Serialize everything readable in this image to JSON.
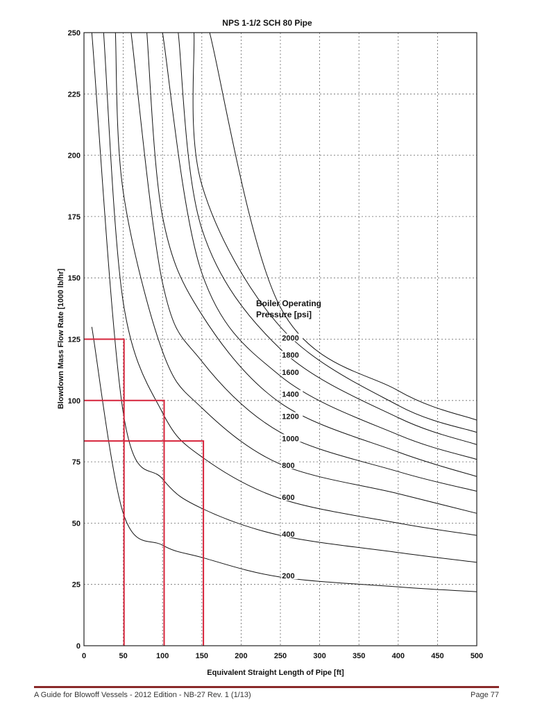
{
  "chart_data": {
    "type": "line",
    "title": "NPS 1-1/2 SCH 80 Pipe",
    "xlabel": "Equivalent Straight Length of Pipe [ft]",
    "ylabel": "Blowdown Mass Flow Rate [1000 lb/hr]",
    "xlim": [
      0,
      500
    ],
    "ylim": [
      0,
      250
    ],
    "xticks": [
      "0",
      "50",
      "100",
      "150",
      "200",
      "250",
      "300",
      "350",
      "400",
      "450",
      "500"
    ],
    "yticks": [
      "0",
      "25",
      "50",
      "75",
      "100",
      "125",
      "150",
      "175",
      "200",
      "225",
      "250"
    ],
    "grid": true,
    "legend_title": [
      "Boiler Operating",
      "Pressure [psi]"
    ],
    "series": [
      {
        "name": "200",
        "x": [
          10,
          50,
          100,
          150,
          250,
          400,
          500
        ],
        "values": [
          130,
          54,
          41,
          36,
          28,
          24,
          22
        ]
      },
      {
        "name": "400",
        "x": [
          10,
          50,
          100,
          150,
          250,
          400,
          500
        ],
        "values": [
          250,
          95,
          68,
          56,
          45,
          38,
          34
        ]
      },
      {
        "name": "600",
        "x": [
          25,
          50,
          100,
          150,
          250,
          400,
          500
        ],
        "values": [
          250,
          140,
          95,
          77,
          60,
          50,
          45
        ]
      },
      {
        "name": "800",
        "x": [
          40,
          50,
          100,
          150,
          250,
          400,
          500
        ],
        "values": [
          250,
          185,
          120,
          97,
          74,
          62,
          54
        ]
      },
      {
        "name": "1000",
        "x": [
          60,
          100,
          150,
          250,
          400,
          500
        ],
        "values": [
          250,
          148,
          116,
          87,
          71,
          63
        ]
      },
      {
        "name": "1200",
        "x": [
          80,
          100,
          150,
          250,
          400,
          500
        ],
        "values": [
          250,
          175,
          135,
          99,
          79,
          69
        ]
      },
      {
        "name": "1400",
        "x": [
          100,
          150,
          250,
          400,
          500
        ],
        "values": [
          250,
          152,
          110,
          86,
          76
        ]
      },
      {
        "name": "1600",
        "x": [
          120,
          150,
          250,
          400,
          500
        ],
        "values": [
          250,
          170,
          121,
          93,
          82
        ]
      },
      {
        "name": "1800",
        "x": [
          140,
          150,
          250,
          400,
          500
        ],
        "values": [
          250,
          188,
          130,
          98,
          87
        ]
      },
      {
        "name": "2000",
        "x": [
          160,
          250,
          400,
          500
        ],
        "values": [
          250,
          138,
          104,
          92
        ]
      }
    ],
    "curve_labels": [
      {
        "text": "200",
        "x": 252,
        "y": 28
      },
      {
        "text": "400",
        "x": 252,
        "y": 45
      },
      {
        "text": "600",
        "x": 252,
        "y": 60
      },
      {
        "text": "800",
        "x": 252,
        "y": 73
      },
      {
        "text": "1000",
        "x": 252,
        "y": 84
      },
      {
        "text": "1200",
        "x": 252,
        "y": 93
      },
      {
        "text": "1400",
        "x": 252,
        "y": 102
      },
      {
        "text": "1600",
        "x": 252,
        "y": 111
      },
      {
        "text": "1800",
        "x": 252,
        "y": 118
      },
      {
        "text": "2000",
        "x": 252,
        "y": 125
      }
    ],
    "annotations": [
      {
        "color": "#d6233a",
        "points": [
          [
            0,
            125
          ],
          [
            51,
            125
          ],
          [
            51,
            0
          ]
        ]
      },
      {
        "color": "#d6233a",
        "points": [
          [
            0,
            100
          ],
          [
            102,
            100
          ],
          [
            102,
            0
          ]
        ]
      },
      {
        "color": "#d6233a",
        "points": [
          [
            0,
            83.5
          ],
          [
            152,
            83.5
          ],
          [
            152,
            0
          ]
        ]
      }
    ]
  },
  "footer": {
    "left": "A Guide for Blowoff Vessels - 2012 Edition - NB-27 Rev. 1 (1/13)",
    "right": "Page 77",
    "rule_color": "#8a2a2a"
  }
}
